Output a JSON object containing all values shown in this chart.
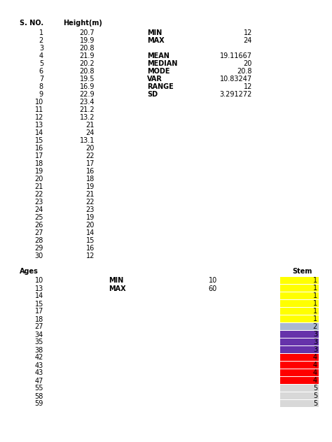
{
  "section1_sno": [
    1,
    2,
    3,
    4,
    5,
    6,
    7,
    8,
    9,
    10,
    11,
    12,
    13,
    14,
    15,
    16,
    17,
    18,
    19,
    20,
    21,
    22,
    23,
    24,
    25,
    26,
    27,
    28,
    29,
    30
  ],
  "section1_heights": [
    "20.7",
    "19.9",
    "20.8",
    "21.9",
    "20.2",
    "20.8",
    "19.5",
    "16.9",
    "22.9",
    "23.4",
    "21.2",
    "13.2",
    "21",
    "24",
    "13.1",
    "20",
    "22",
    "17",
    "16",
    "18",
    "19",
    "21",
    "22",
    "23",
    "19",
    "20",
    "14",
    "15",
    "16",
    "12"
  ],
  "stats_labels": [
    "MIN",
    "MAX",
    "",
    "MEAN",
    "MEDIAN",
    "MODE",
    "VAR",
    "RANGE",
    "SD"
  ],
  "stats_values": [
    "12",
    "24",
    "",
    "19.11667",
    "20",
    "20.8",
    "10.83247",
    "12",
    "3.291272"
  ],
  "section2_ages": [
    "10",
    "13",
    "14",
    "15",
    "17",
    "18",
    "27",
    "34",
    "35",
    "38",
    "42",
    "43",
    "43",
    "47",
    "55",
    "58",
    "59"
  ],
  "section2_min_val": "10",
  "section2_max_val": "60",
  "stem_values": [
    "1",
    "1",
    "1",
    "1",
    "1",
    "1",
    "2",
    "3",
    "3",
    "3",
    "4",
    "4",
    "4",
    "4",
    "5",
    "5",
    "5"
  ],
  "stem_colors": [
    "#ffff00",
    "#ffff00",
    "#ffff00",
    "#ffff00",
    "#ffff00",
    "#ffff00",
    "#aab8d0",
    "#6633aa",
    "#6633aa",
    "#6633aa",
    "#ff0000",
    "#ff0000",
    "#ff0000",
    "#ff0000",
    "#d8d8d8",
    "#d8d8d8",
    "#d8d8d8"
  ],
  "bg_color": "#ffffff"
}
